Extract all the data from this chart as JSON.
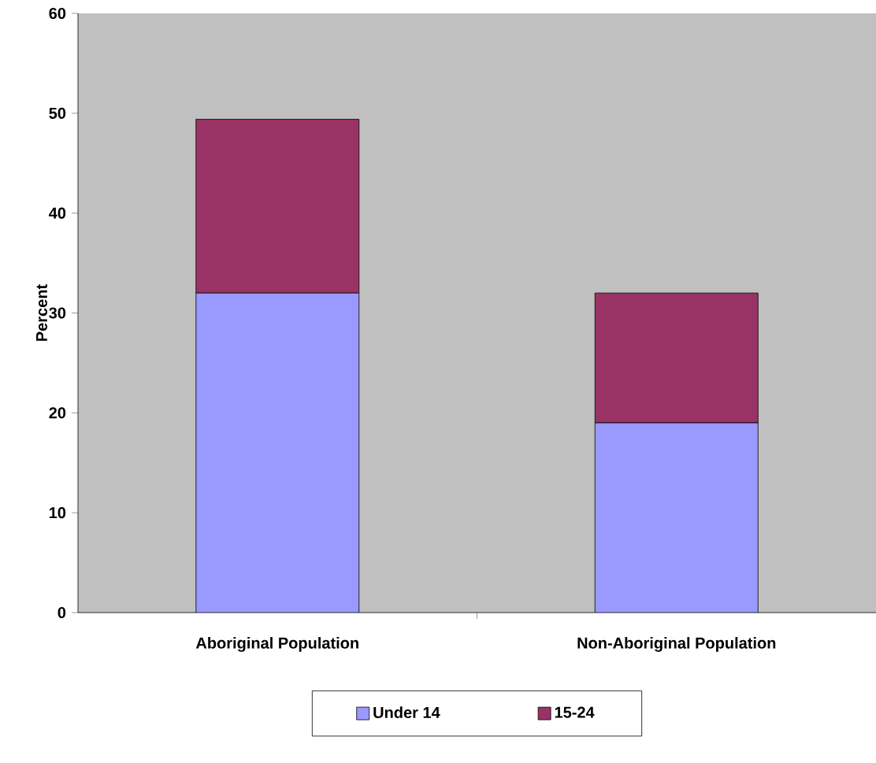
{
  "chart_data": {
    "type": "bar",
    "stacked": true,
    "ylabel": "Percent",
    "categories": [
      "Aboriginal Population",
      "Non-Aboriginal Population"
    ],
    "series": [
      {
        "name": "Under 14",
        "color": "#9999ff",
        "values": [
          32,
          19
        ]
      },
      {
        "name": "15-24",
        "color": "#993366",
        "values": [
          17.4,
          13
        ]
      }
    ],
    "ylim": [
      0,
      60
    ],
    "yticks": [
      0,
      10,
      20,
      30,
      40,
      50,
      60
    ],
    "legend": "bottom"
  }
}
